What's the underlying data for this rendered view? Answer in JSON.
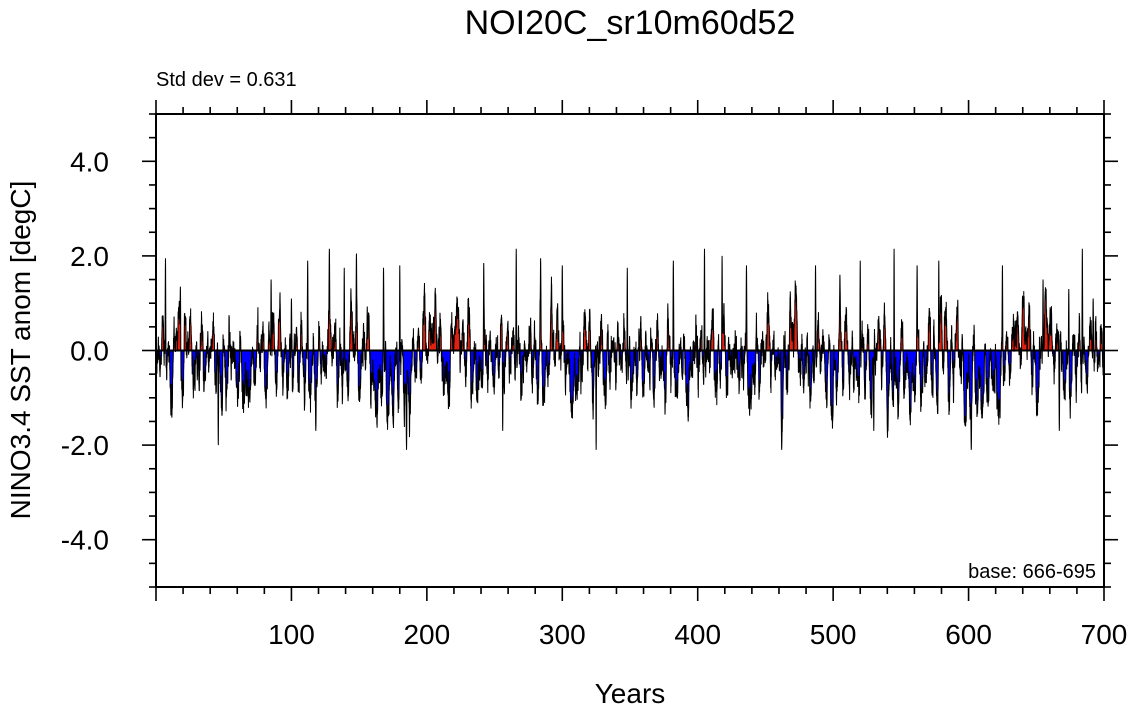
{
  "chart_data": {
    "type": "area",
    "title": "NOI20C_sr10m60d52",
    "xlabel": "Years",
    "ylabel": "NINO3.4 SST anom [degC]",
    "annotation_left": "Std dev = 0.631",
    "annotation_right": "base: 666-695",
    "xlim": [
      0,
      700
    ],
    "ylim": [
      -5,
      5
    ],
    "xticks": [
      100,
      200,
      300,
      400,
      500,
      600,
      700
    ],
    "yticks": [
      4,
      2,
      0,
      -2,
      -4
    ],
    "xtick_labels": [
      "100",
      "200",
      "300",
      "400",
      "500",
      "600",
      "700"
    ],
    "ytick_labels": [
      "4.0",
      "2.0",
      "0.0",
      "-2.0",
      "-4.0"
    ],
    "grid": false,
    "positive_fill": "#dd2211",
    "negative_fill": "#0000ff",
    "line_color": "#000000",
    "n_points": 8400,
    "peaks": [
      {
        "x": 7,
        "y": 1.95
      },
      {
        "x": 18,
        "y": 1.35
      },
      {
        "x": 46,
        "y": -2.0
      },
      {
        "x": 85,
        "y": 1.5
      },
      {
        "x": 100,
        "y": 1.1
      },
      {
        "x": 112,
        "y": 1.9
      },
      {
        "x": 118,
        "y": -1.7
      },
      {
        "x": 128,
        "y": 2.15
      },
      {
        "x": 139,
        "y": 1.75
      },
      {
        "x": 148,
        "y": 2.05
      },
      {
        "x": 168,
        "y": 1.75
      },
      {
        "x": 180,
        "y": 1.8
      },
      {
        "x": 185,
        "y": -2.1
      },
      {
        "x": 242,
        "y": 1.85
      },
      {
        "x": 256,
        "y": -1.7
      },
      {
        "x": 266,
        "y": 2.15
      },
      {
        "x": 284,
        "y": 1.95
      },
      {
        "x": 300,
        "y": 1.8
      },
      {
        "x": 325,
        "y": -2.1
      },
      {
        "x": 348,
        "y": 1.75
      },
      {
        "x": 382,
        "y": 1.9
      },
      {
        "x": 405,
        "y": 2.15
      },
      {
        "x": 418,
        "y": 2.0
      },
      {
        "x": 436,
        "y": 1.8
      },
      {
        "x": 462,
        "y": -2.1
      },
      {
        "x": 487,
        "y": 1.8
      },
      {
        "x": 505,
        "y": 1.6
      },
      {
        "x": 520,
        "y": 1.9
      },
      {
        "x": 530,
        "y": -1.7
      },
      {
        "x": 545,
        "y": 2.15
      },
      {
        "x": 562,
        "y": 1.8
      },
      {
        "x": 578,
        "y": 1.9
      },
      {
        "x": 602,
        "y": -2.1
      },
      {
        "x": 625,
        "y": 1.8
      },
      {
        "x": 655,
        "y": 1.5
      },
      {
        "x": 667,
        "y": -1.7
      },
      {
        "x": 674,
        "y": 1.3
      },
      {
        "x": 684,
        "y": 2.15
      },
      {
        "x": 692,
        "y": 1.1
      }
    ]
  }
}
